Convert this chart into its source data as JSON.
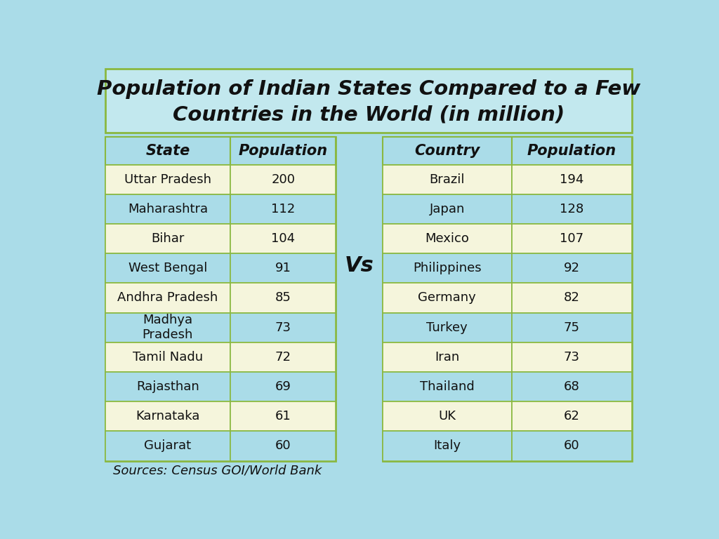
{
  "title_line1": "Population of Indian States Compared to a Few",
  "title_line2": "Countries in the World (in million)",
  "states": [
    "Uttar Pradesh",
    "Maharashtra",
    "Bihar",
    "West Bengal",
    "Andhra Pradesh",
    "Madhya\nPradesh",
    "Tamil Nadu",
    "Rajasthan",
    "Karnataka",
    "Gujarat"
  ],
  "state_pops": [
    "200",
    "112",
    "104",
    "91",
    "85",
    "73",
    "72",
    "69",
    "61",
    "60"
  ],
  "countries": [
    "Brazil",
    "Japan",
    "Mexico",
    "Philippines",
    "Germany",
    "Turkey",
    "Iran",
    "Thailand",
    "UK",
    "Italy"
  ],
  "country_pops": [
    "194",
    "128",
    "107",
    "92",
    "82",
    "75",
    "73",
    "68",
    "62",
    "60"
  ],
  "bg_color": "#aadce8",
  "cell_cream": "#f5f5dc",
  "cell_bg_transparent": "transparent",
  "header_bg": "#aadce8",
  "border_color": "#8ab840",
  "title_bg": "#c2e8ee",
  "title_border": "#8ab840",
  "text_color": "#111111",
  "header_text_color": "#111111",
  "source_text": "Sources: Census GOI/World Bank",
  "vs_text": "Vs",
  "row_is_cream": [
    true,
    false,
    true,
    false,
    true,
    false,
    true,
    false,
    true,
    false
  ]
}
